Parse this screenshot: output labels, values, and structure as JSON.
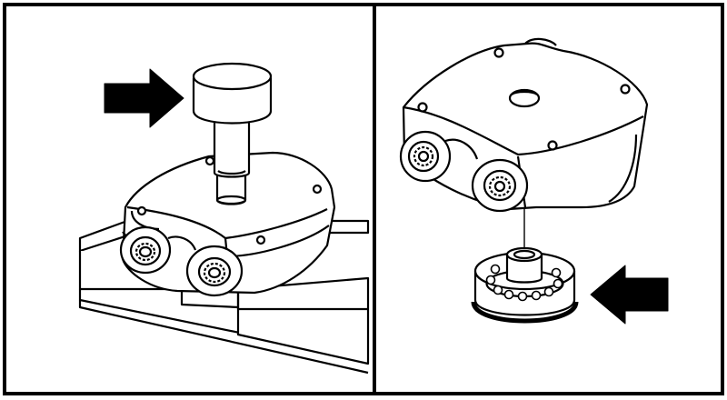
{
  "figure": {
    "panels": [
      {
        "id": "left",
        "content": "press-tool-on-housing"
      },
      {
        "id": "right",
        "content": "bearing-below-housing"
      }
    ],
    "icons": {
      "press_arrow": "arrow-right-icon",
      "bearing_arrow": "arrow-left-icon"
    },
    "colors": {
      "ink": "#000000",
      "paper": "#ffffff"
    }
  }
}
